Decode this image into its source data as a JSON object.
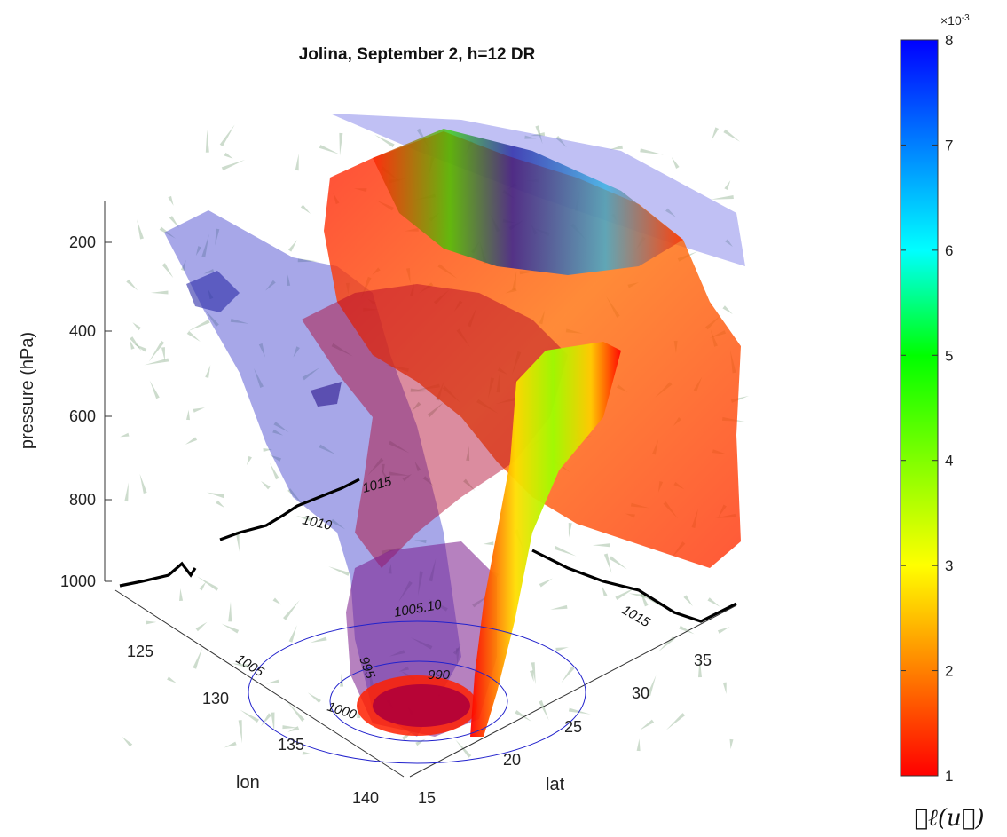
{
  "chart_data": {
    "type": "3d-isosurface",
    "title": "Jolina, September 2, h=12 DR",
    "axes": {
      "x": {
        "label": "lon",
        "ticks": [
          "125",
          "130",
          "135",
          "140"
        ]
      },
      "y": {
        "label": "lat",
        "ticks": [
          "15",
          "20",
          "25",
          "30",
          "35"
        ]
      },
      "z": {
        "label": "pressure (hPa)",
        "ticks": [
          "200",
          "400",
          "600",
          "800",
          "1000"
        ],
        "reversed": true
      }
    },
    "contour_labels": [
      "1015",
      "1010",
      "1005",
      "1005",
      "1000",
      "995",
      "990",
      "1000",
      "1005.10",
      "1015"
    ],
    "colorbar": {
      "title": "𝒟ℓ(u⃗)",
      "exponent": "×10^-3",
      "exponent_base": "×10",
      "exponent_power": "-3",
      "ticks": [
        "1",
        "2",
        "3",
        "4",
        "5",
        "6",
        "7",
        "8"
      ],
      "range": [
        1,
        8
      ],
      "colormap": [
        "#ff0000",
        "#ff8000",
        "#ffff00",
        "#80ff00",
        "#00ff00",
        "#00ffff",
        "#0080ff",
        "#0000ff"
      ]
    },
    "colors": {
      "isosurface_warm": "#ff2a00",
      "isosurface_cool": "#3a3acf",
      "wind_arrows": "#6f9a6f",
      "coastline": "#000000"
    }
  }
}
